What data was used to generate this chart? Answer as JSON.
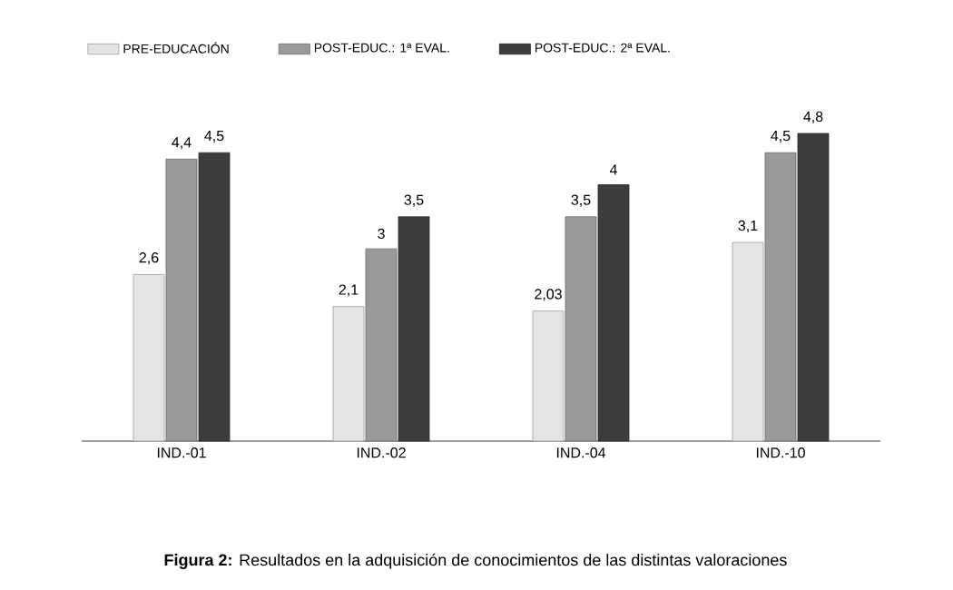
{
  "chart_data": {
    "type": "bar",
    "categories": [
      "IND.-01",
      "IND.-02",
      "IND.-04",
      "IND.-10"
    ],
    "series": [
      {
        "name": "PRE-EDUCACIÓN",
        "color": "#e4e4e4",
        "values": [
          2.6,
          2.1,
          2.03,
          3.1
        ],
        "value_labels": [
          "2,6",
          "2,1",
          "2,03",
          "3,1"
        ]
      },
      {
        "name": "POST-EDUC.: 1ª EVAL.",
        "color": "#9a9a9a",
        "values": [
          4.4,
          3,
          3.5,
          4.5
        ],
        "value_labels": [
          "4,4",
          "3",
          "3,5",
          "4,5"
        ]
      },
      {
        "name": "POST-EDUC.: 2ª EVAL.",
        "color": "#3c3c3c",
        "values": [
          4.5,
          3.5,
          4,
          4.8
        ],
        "value_labels": [
          "4,5",
          "3,5",
          "4",
          "4,8"
        ]
      }
    ],
    "legend": "top left",
    "grid": false,
    "annotations": [
      "**Figura 2:** Resultados en la adquisición de conocimientos de las distintas valoraciones"
    ]
  }
}
